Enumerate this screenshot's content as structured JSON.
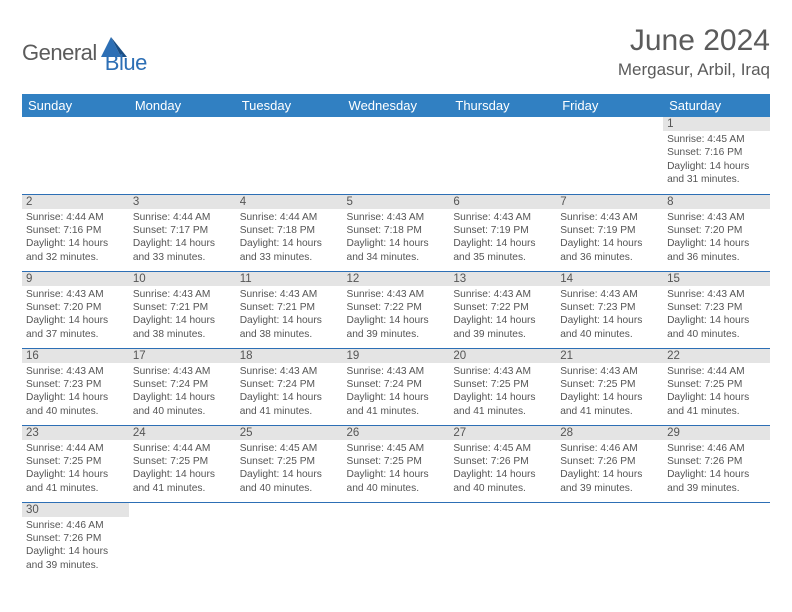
{
  "logo": {
    "part1": "General",
    "part2": "Blue"
  },
  "title": "June 2024",
  "location": "Mergasur, Arbil, Iraq",
  "header_bg": "#3180c2",
  "border_color": "#2d6fb5",
  "daynum_bg": "#e4e4e4",
  "text_color": "#555555",
  "weekdays": [
    "Sunday",
    "Monday",
    "Tuesday",
    "Wednesday",
    "Thursday",
    "Friday",
    "Saturday"
  ],
  "weeks": [
    [
      null,
      null,
      null,
      null,
      null,
      null,
      {
        "n": "1",
        "sr": "4:45 AM",
        "ss": "7:16 PM",
        "dl": "14 hours and 31 minutes."
      }
    ],
    [
      {
        "n": "2",
        "sr": "4:44 AM",
        "ss": "7:16 PM",
        "dl": "14 hours and 32 minutes."
      },
      {
        "n": "3",
        "sr": "4:44 AM",
        "ss": "7:17 PM",
        "dl": "14 hours and 33 minutes."
      },
      {
        "n": "4",
        "sr": "4:44 AM",
        "ss": "7:18 PM",
        "dl": "14 hours and 33 minutes."
      },
      {
        "n": "5",
        "sr": "4:43 AM",
        "ss": "7:18 PM",
        "dl": "14 hours and 34 minutes."
      },
      {
        "n": "6",
        "sr": "4:43 AM",
        "ss": "7:19 PM",
        "dl": "14 hours and 35 minutes."
      },
      {
        "n": "7",
        "sr": "4:43 AM",
        "ss": "7:19 PM",
        "dl": "14 hours and 36 minutes."
      },
      {
        "n": "8",
        "sr": "4:43 AM",
        "ss": "7:20 PM",
        "dl": "14 hours and 36 minutes."
      }
    ],
    [
      {
        "n": "9",
        "sr": "4:43 AM",
        "ss": "7:20 PM",
        "dl": "14 hours and 37 minutes."
      },
      {
        "n": "10",
        "sr": "4:43 AM",
        "ss": "7:21 PM",
        "dl": "14 hours and 38 minutes."
      },
      {
        "n": "11",
        "sr": "4:43 AM",
        "ss": "7:21 PM",
        "dl": "14 hours and 38 minutes."
      },
      {
        "n": "12",
        "sr": "4:43 AM",
        "ss": "7:22 PM",
        "dl": "14 hours and 39 minutes."
      },
      {
        "n": "13",
        "sr": "4:43 AM",
        "ss": "7:22 PM",
        "dl": "14 hours and 39 minutes."
      },
      {
        "n": "14",
        "sr": "4:43 AM",
        "ss": "7:23 PM",
        "dl": "14 hours and 40 minutes."
      },
      {
        "n": "15",
        "sr": "4:43 AM",
        "ss": "7:23 PM",
        "dl": "14 hours and 40 minutes."
      }
    ],
    [
      {
        "n": "16",
        "sr": "4:43 AM",
        "ss": "7:23 PM",
        "dl": "14 hours and 40 minutes."
      },
      {
        "n": "17",
        "sr": "4:43 AM",
        "ss": "7:24 PM",
        "dl": "14 hours and 40 minutes."
      },
      {
        "n": "18",
        "sr": "4:43 AM",
        "ss": "7:24 PM",
        "dl": "14 hours and 41 minutes."
      },
      {
        "n": "19",
        "sr": "4:43 AM",
        "ss": "7:24 PM",
        "dl": "14 hours and 41 minutes."
      },
      {
        "n": "20",
        "sr": "4:43 AM",
        "ss": "7:25 PM",
        "dl": "14 hours and 41 minutes."
      },
      {
        "n": "21",
        "sr": "4:43 AM",
        "ss": "7:25 PM",
        "dl": "14 hours and 41 minutes."
      },
      {
        "n": "22",
        "sr": "4:44 AM",
        "ss": "7:25 PM",
        "dl": "14 hours and 41 minutes."
      }
    ],
    [
      {
        "n": "23",
        "sr": "4:44 AM",
        "ss": "7:25 PM",
        "dl": "14 hours and 41 minutes."
      },
      {
        "n": "24",
        "sr": "4:44 AM",
        "ss": "7:25 PM",
        "dl": "14 hours and 41 minutes."
      },
      {
        "n": "25",
        "sr": "4:45 AM",
        "ss": "7:25 PM",
        "dl": "14 hours and 40 minutes."
      },
      {
        "n": "26",
        "sr": "4:45 AM",
        "ss": "7:25 PM",
        "dl": "14 hours and 40 minutes."
      },
      {
        "n": "27",
        "sr": "4:45 AM",
        "ss": "7:26 PM",
        "dl": "14 hours and 40 minutes."
      },
      {
        "n": "28",
        "sr": "4:46 AM",
        "ss": "7:26 PM",
        "dl": "14 hours and 39 minutes."
      },
      {
        "n": "29",
        "sr": "4:46 AM",
        "ss": "7:26 PM",
        "dl": "14 hours and 39 minutes."
      }
    ],
    [
      {
        "n": "30",
        "sr": "4:46 AM",
        "ss": "7:26 PM",
        "dl": "14 hours and 39 minutes."
      },
      null,
      null,
      null,
      null,
      null,
      null
    ]
  ],
  "labels": {
    "sunrise": "Sunrise:",
    "sunset": "Sunset:",
    "daylight": "Daylight:"
  }
}
